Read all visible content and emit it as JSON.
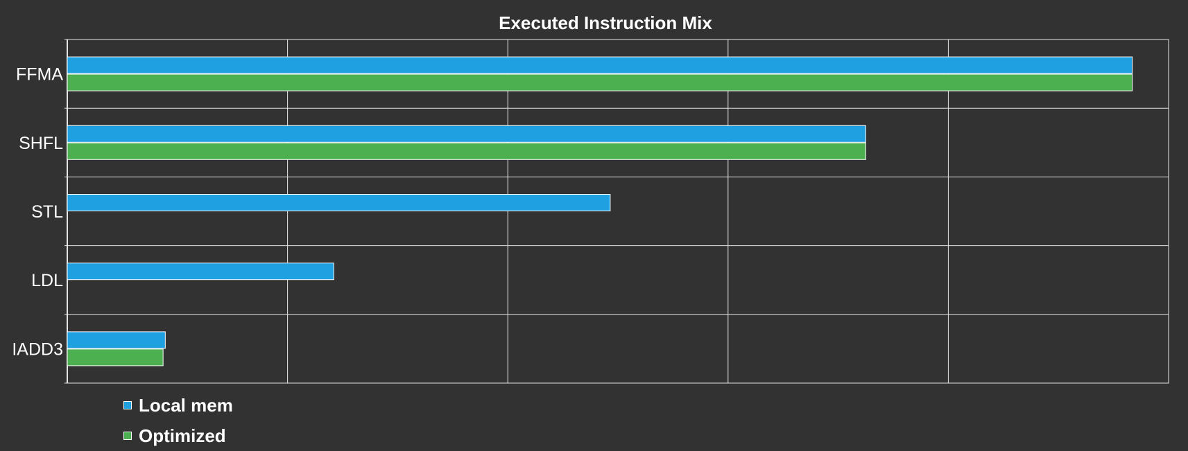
{
  "chart_data": {
    "type": "bar",
    "orientation": "horizontal",
    "title": "Executed Instruction Mix",
    "xlabel": "",
    "ylabel": "",
    "categories": [
      "FFMA",
      "SHFL",
      "STL",
      "LDL",
      "IADD3"
    ],
    "series": [
      {
        "name": "Local mem",
        "color": "#1fa0e0",
        "values": [
          96.7,
          72.5,
          49.3,
          24.2,
          8.9
        ]
      },
      {
        "name": "Optimized",
        "color": "#4caf50",
        "values": [
          96.7,
          72.5,
          null,
          null,
          8.7
        ]
      }
    ],
    "xlim": [
      0,
      100
    ],
    "x_gridlines": 5,
    "grid": true,
    "legend_position": "bottom-left",
    "colors": {
      "background": "#323232",
      "grid": "#e6e6e6",
      "text": "#ffffff",
      "bar_border": "#ffffff"
    }
  }
}
